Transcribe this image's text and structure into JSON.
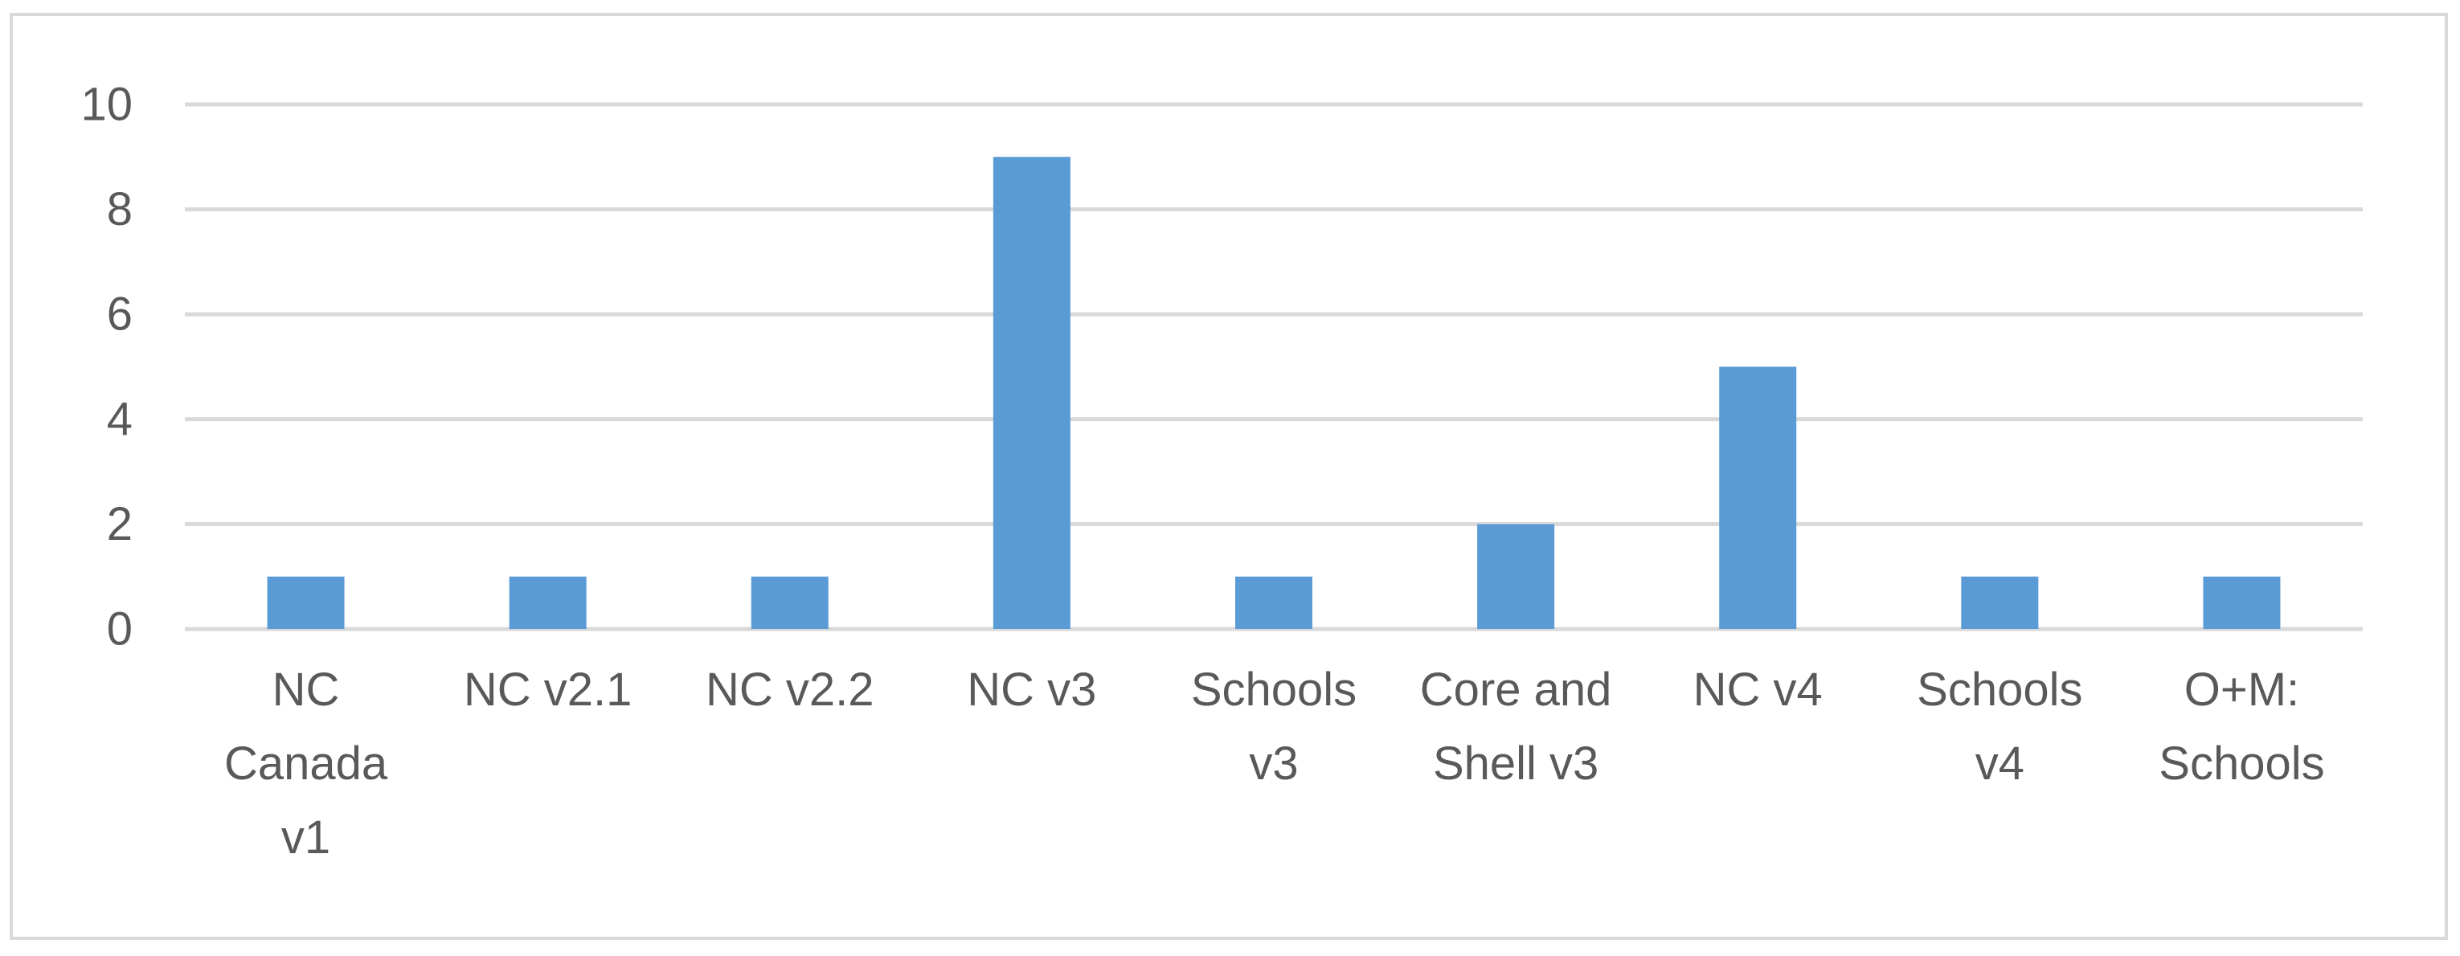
{
  "chart_data": {
    "type": "bar",
    "categories": [
      [
        "NC",
        "Canada",
        "v1"
      ],
      [
        "NC v2.1"
      ],
      [
        "NC v2.2"
      ],
      [
        "NC v3"
      ],
      [
        "Schools",
        "v3"
      ],
      [
        "Core and",
        "Shell v3"
      ],
      [
        "NC v4"
      ],
      [
        "Schools",
        "v4"
      ],
      [
        "O+M:",
        "Schools"
      ]
    ],
    "values": [
      1,
      1,
      1,
      9,
      1,
      2,
      5,
      1,
      1
    ],
    "ylim": [
      0,
      10
    ],
    "yticks": [
      0,
      2,
      4,
      6,
      8,
      10
    ],
    "grid": true,
    "colors": {
      "bar": "#5b9bd5",
      "grid": "#d9d9d9",
      "text": "#595959"
    }
  }
}
